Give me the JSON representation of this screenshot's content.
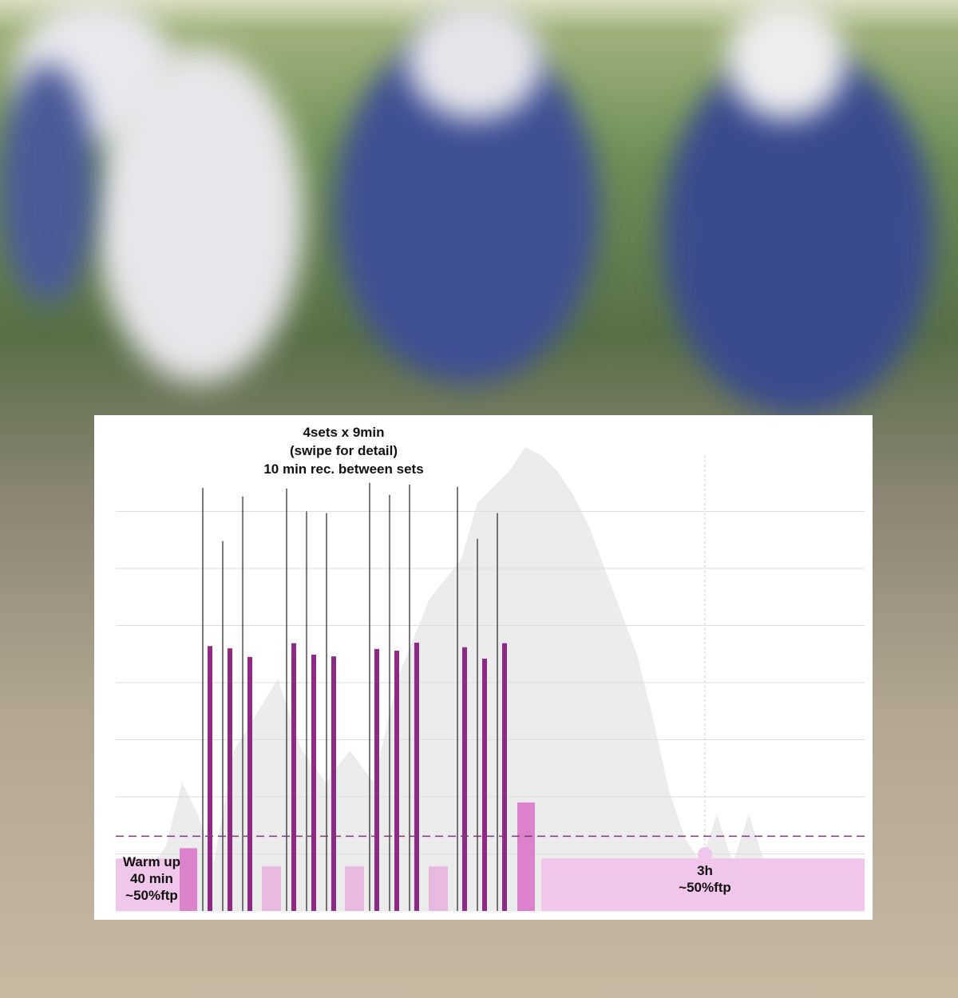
{
  "chart_data": {
    "type": "bar",
    "title_lines": [
      "4sets x 9min",
      "(swipe for detail)",
      "10 min rec. between sets"
    ],
    "annotations": {
      "warmup": [
        "Warm up",
        "40 min",
        "~50%ftp"
      ],
      "endurance": [
        "3h",
        "~50%ftp"
      ]
    },
    "xlabel": "",
    "ylabel": "",
    "grid": true,
    "reference_line": {
      "style": "dashed",
      "value": 1.31
    },
    "colors": {
      "interval": "#8e2a86",
      "peak_line": "#222222",
      "recovery": "#e8b8df",
      "warmup": "#f0c6ea",
      "warmup_ramp": "#dc82cc",
      "post": "#dc82cc",
      "endurance": "#f0c6ea",
      "reference": "#7a3a72",
      "profile": "#ececec"
    },
    "warmup": {
      "values": [
        0.92,
        1.1
      ]
    },
    "sets": [
      {
        "intervals": [
          4.64,
          4.6,
          4.45
        ],
        "peaks": [
          7.41,
          6.48,
          7.26
        ]
      },
      {
        "intervals": [
          4.69,
          4.49,
          4.46
        ],
        "peaks": [
          7.4,
          7.0,
          6.97
        ]
      },
      {
        "intervals": [
          4.59,
          4.56,
          4.7
        ],
        "peaks": [
          7.5,
          7.29,
          7.47
        ]
      },
      {
        "intervals": [
          4.62,
          4.42,
          4.69
        ],
        "peaks": [
          7.43,
          6.52,
          6.97
        ]
      }
    ],
    "recovery": [
      0.78,
      0.78,
      0.78
    ],
    "post": 1.9,
    "endurance": 0.92,
    "ylim": [
      0,
      8
    ]
  }
}
